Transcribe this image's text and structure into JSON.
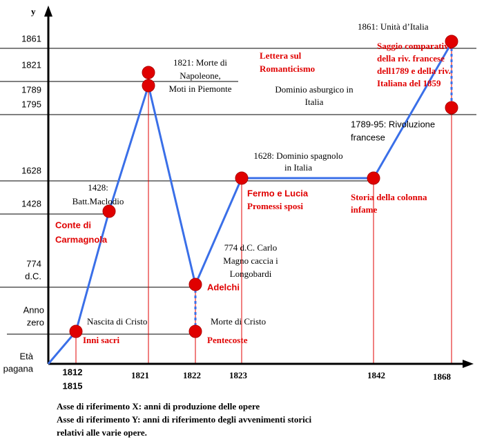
{
  "axis": {
    "y": "y"
  },
  "y_labels": [
    [
      "1861"
    ],
    [
      "1821"
    ],
    [
      "1789"
    ],
    [
      "1795"
    ],
    [
      "1628"
    ],
    [
      "1428"
    ],
    [
      "774",
      "d.C."
    ],
    [
      "Anno",
      "zero"
    ],
    [
      "Età",
      "pagana"
    ]
  ],
  "x_labels": [
    [
      "1812",
      "1815"
    ],
    [
      "1821"
    ],
    [
      "1822"
    ],
    [
      "1823"
    ],
    [
      "1842"
    ],
    [
      "1868"
    ]
  ],
  "events": [
    [
      "1821: Morte di",
      "Napoleone,",
      "Moti in Piemonte"
    ],
    [
      "1428:",
      "Batt.Maclodio"
    ],
    [
      "Nascita di Cristo"
    ],
    [
      "Morte di Cristo"
    ],
    [
      "774 d.C. Carlo",
      "Magno caccia i",
      "Longobardi"
    ],
    [
      "1628: Dominio spagnolo",
      "in Italia"
    ],
    [
      "Dominio asburgico in",
      "Italia"
    ],
    [
      "1789-95: Rivoluzione",
      "francese"
    ],
    [
      "1861: Unità d’Italia"
    ]
  ],
  "works": [
    [
      "Lettera sul",
      "Romanticismo"
    ],
    [
      "Conte di",
      "Carmagnola"
    ],
    [
      "Adelchi"
    ],
    [
      "Inni sacri"
    ],
    [
      "Pentecoste"
    ],
    [
      "Fermo e Lucia"
    ],
    [
      "Promessi sposi"
    ],
    [
      "Storia della colonna",
      "infame"
    ],
    [
      "Saggio comparativo",
      "della riv. francese",
      "dell1789 e della riv.",
      "Italiana  del 1859"
    ]
  ],
  "footer": [
    "Asse di riferimento X: anni di produzione delle opere",
    "Asse di riferimento Y: anni di riferimento degli avvenimenti storici",
    "relativi alle varie opere."
  ]
}
